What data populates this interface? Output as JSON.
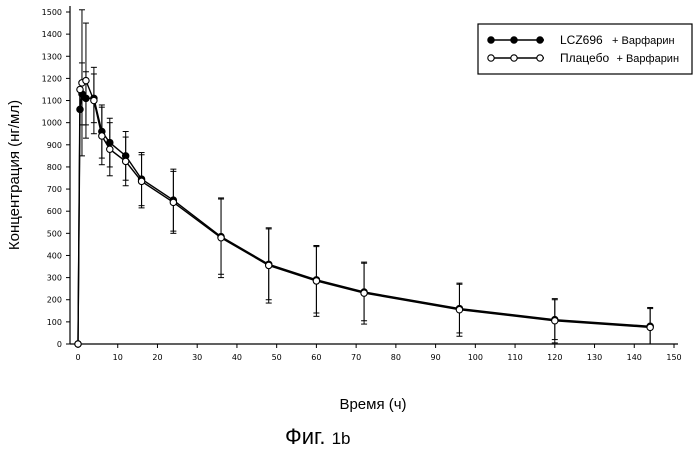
{
  "chart_data": {
    "type": "line",
    "xlabel": "Время (ч)",
    "ylabel": "Концентрация (нг/мл)",
    "xlim": [
      0,
      150
    ],
    "ylim": [
      0,
      1500
    ],
    "xticks": [
      "0",
      "10",
      "20",
      "30",
      "40",
      "50",
      "60",
      "70",
      "80",
      "90",
      "100",
      "110",
      "120",
      "130",
      "140",
      "150"
    ],
    "yticks": [
      "0",
      "100",
      "200",
      "300",
      "400",
      "500",
      "600",
      "700",
      "800",
      "900",
      "1000",
      "1100",
      "1200",
      "1300",
      "1400",
      "1500"
    ],
    "grid": false,
    "legend_position": "top-right",
    "series": [
      {
        "name": "LCZ696 + Варфарин",
        "marker": "filled-circle",
        "x": [
          0,
          0.5,
          1,
          2,
          4,
          6,
          8,
          12,
          16,
          24,
          36,
          48,
          60,
          72,
          96,
          120,
          144
        ],
        "y": [
          0,
          1060,
          1130,
          1110,
          1110,
          960,
          910,
          850,
          745,
          650,
          485,
          360,
          290,
          235,
          160,
          110,
          80
        ],
        "err": [
          0,
          0,
          140,
          120,
          110,
          120,
          110,
          110,
          120,
          140,
          170,
          160,
          150,
          130,
          110,
          90,
          80
        ]
      },
      {
        "name": "Плацебо + Варфарин",
        "marker": "open-circle",
        "x": [
          0,
          0.5,
          1,
          2,
          4,
          6,
          8,
          12,
          16,
          24,
          36,
          48,
          60,
          72,
          96,
          120,
          144
        ],
        "y": [
          0,
          1150,
          1180,
          1190,
          1100,
          940,
          880,
          825,
          735,
          640,
          480,
          355,
          285,
          230,
          155,
          105,
          75
        ],
        "err": [
          0,
          0,
          330,
          260,
          150,
          130,
          120,
          110,
          120,
          140,
          180,
          170,
          160,
          140,
          120,
          100,
          90
        ]
      }
    ],
    "legend": {
      "series1_main": "LCZ696",
      "series1_suffix": "+ Варфарин",
      "series2_main": "Плацебо",
      "series2_suffix": "+ Варфарин"
    }
  },
  "caption": {
    "main": "Фиг.",
    "suffix": "1b"
  }
}
